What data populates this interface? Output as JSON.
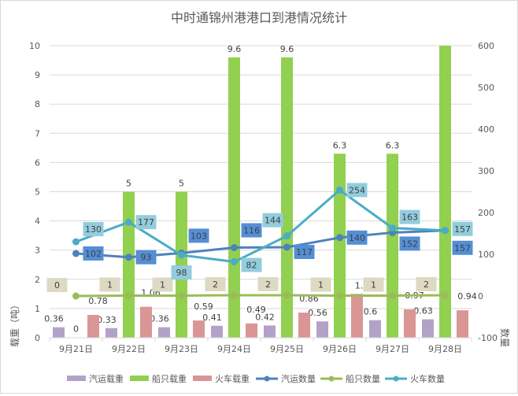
{
  "chart_data": {
    "type": "bar+line",
    "title": "中时通锦州港港口到港情况统计",
    "ylabel": "载重（吨）",
    "y2label": "数量",
    "ylim": [
      0,
      10
    ],
    "y2lim": [
      -100,
      600
    ],
    "yticks": [
      "0",
      "1",
      "2",
      "3",
      "4",
      "5",
      "6",
      "7",
      "8",
      "9",
      "10"
    ],
    "y2ticks": [
      "-100",
      "0",
      "100",
      "200",
      "300",
      "400",
      "500",
      "600"
    ],
    "grid": true,
    "legend": "bottom",
    "categories": [
      "9月21日",
      "9月22日",
      "9月23日",
      "9月24日",
      "9月25日",
      "9月26日",
      "9月27日",
      "9月28日"
    ],
    "bars": [
      {
        "name": "汽运载重",
        "color": "#b3a2c7",
        "values": [
          0.36,
          0.33,
          0.36,
          0.41,
          0.42,
          0.56,
          0.6,
          0.63
        ],
        "labels": [
          "0.36",
          "0.33",
          "0.36",
          "0.41",
          "0.42",
          "0.56",
          "0.6",
          "0.63"
        ]
      },
      {
        "name": "船只载重",
        "color": "#92d050",
        "values": [
          0,
          5,
          5,
          9.6,
          9.6,
          6.3,
          6.3,
          10
        ],
        "labels": [
          "0",
          "5",
          "5",
          "9.6",
          "9.6",
          "6.3",
          "6.3",
          ""
        ]
      },
      {
        "name": "火车载重",
        "color": "#d99694",
        "values": [
          0.78,
          1.06,
          0.59,
          0.49,
          0.86,
          1.5,
          0.97,
          0.94
        ],
        "labels": [
          "0.78",
          "1.06",
          "0.59",
          "0.49",
          "0.86",
          "1.5",
          "0.97",
          "0.94"
        ]
      }
    ],
    "lines": [
      {
        "name": "汽运数量",
        "color": "#4f81bd",
        "labelBg": "#558ed5",
        "values": [
          102,
          93,
          103,
          116,
          117,
          140,
          152,
          157
        ]
      },
      {
        "name": "船只数量",
        "color": "#9bbb59",
        "labelBg": "#ddd9c3",
        "values": [
          0,
          1,
          1,
          2,
          2,
          1,
          1,
          2
        ]
      },
      {
        "name": "火车数量",
        "color": "#4bacc6",
        "labelBg": "#93cddd",
        "values": [
          130,
          177,
          98,
          82,
          144,
          254,
          163,
          157
        ]
      }
    ]
  }
}
